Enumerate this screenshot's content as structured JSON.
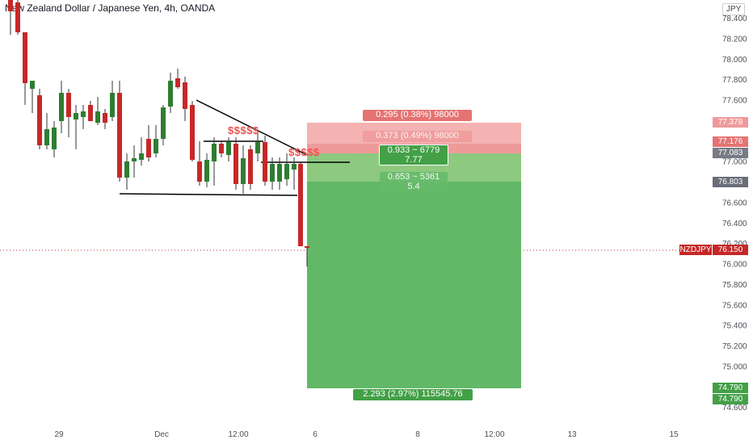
{
  "header": {
    "title": "New Zealand Dollar / Japanese Yen, 4h, OANDA",
    "currency_button": "JPY"
  },
  "price_axis": {
    "labels": [
      "78.400",
      "78.200",
      "78.000",
      "77.800",
      "77.600",
      "77.400",
      "77.200",
      "77.000",
      "76.800",
      "76.600",
      "76.400",
      "76.200",
      "76.000",
      "75.800",
      "75.600",
      "75.400",
      "75.200",
      "75.000",
      "74.800",
      "74.600"
    ]
  },
  "time_axis": {
    "labels": [
      "29",
      "Dec",
      "12:00",
      "6",
      "8",
      "12:00",
      "13",
      "15"
    ]
  },
  "position": {
    "risk_level_label": "0.295 (0.38%) 98000",
    "risk_level2_label": "0.373 (0.49%) 98000",
    "entry_label_line1": "0.933 ~ 6779",
    "entry_label_line2": "7.77",
    "mid_label_line1": "0.653 ~ 5361",
    "mid_label_line2": "5.4",
    "target_label": "2.293 (2.97%) 115545.76"
  },
  "annotations": {
    "dollars_left": "$$$$$",
    "dollars_right": "$$$$$"
  },
  "price_tags": {
    "stop_upper": "77.378",
    "stop_lower": "77.176",
    "entry": "77.083",
    "mid": "76.803",
    "symbol": "NZDJPY",
    "current": "76.150",
    "target_1": "74.790",
    "target_2": "74.790"
  },
  "colors": {
    "bull": "#26a69a",
    "bull_body": "#2e7d32",
    "bear": "#c62828",
    "profit_zone": "#66bb6a",
    "loss_zone": "#ef9a9a",
    "current_price": "#c62828"
  }
}
